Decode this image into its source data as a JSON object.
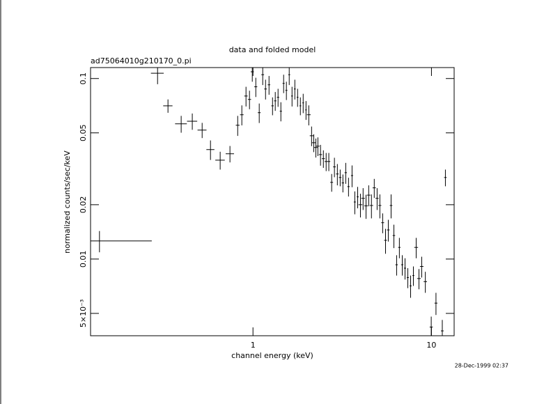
{
  "chart_data": {
    "type": "errorbar-scatter",
    "title": "data and folded model",
    "subtitle": "ad75064010g210170_0.pi",
    "x_label": "channel energy (keV)",
    "y_label": "normalized counts/sec/keV",
    "timestamp": "28-Dec-1999 02:37",
    "log_x": true,
    "log_y": true,
    "color": "#000000",
    "xlim": [
      0.123,
      13.4
    ],
    "ylim": [
      0.00376,
      0.115
    ],
    "xticks": [
      1,
      10
    ],
    "yticks": [
      {
        "value": 0.005,
        "label": "5×10⁻³"
      },
      0.01,
      0.02,
      0.05,
      0.1
    ],
    "x": [
      0.138,
      0.292,
      0.334,
      0.396,
      0.457,
      0.519,
      0.578,
      0.655,
      0.743,
      0.821,
      0.866,
      0.914,
      0.956,
      0.991,
      1.037,
      1.084,
      1.134,
      1.176,
      1.23,
      1.287,
      1.333,
      1.382,
      1.433,
      1.485,
      1.539,
      1.596,
      1.655,
      1.716,
      1.778,
      1.843,
      1.911,
      1.982,
      2.054,
      2.13,
      2.19,
      2.25,
      2.31,
      2.39,
      2.48,
      2.57,
      2.66,
      2.76,
      2.86,
      2.97,
      3.08,
      3.19,
      3.31,
      3.43,
      3.59,
      3.72,
      3.86,
      4.0,
      4.14,
      4.3,
      4.45,
      4.61,
      4.78,
      4.96,
      5.14,
      5.33,
      5.53,
      5.73,
      5.94,
      6.16,
      6.38,
      6.61,
      6.86,
      7.11,
      7.37,
      7.64,
      7.92,
      8.21,
      8.51,
      8.82,
      9.24,
      9.97,
      10.6,
      11.5,
      11.97
    ],
    "xerr": [
      0.133,
      0.024,
      0.02,
      0.03,
      0.03,
      0.03,
      0.03,
      0.04,
      0.04,
      0.02,
      0.02,
      0.02,
      0.02,
      0.02,
      0.02,
      0.02,
      0.02,
      0.02,
      0.02,
      0.02,
      0.02,
      0.02,
      0.02,
      0.02,
      0.02,
      0.02,
      0.02,
      0.02,
      0.02,
      0.02,
      0.02,
      0.02,
      0.05,
      0.05,
      0.05,
      0.05,
      0.05,
      0.05,
      0.05,
      0.05,
      0.05,
      0.05,
      0.05,
      0.05,
      0.05,
      0.05,
      0.05,
      0.05,
      0.05,
      0.05,
      0.05,
      0.1,
      0.1,
      0.1,
      0.1,
      0.1,
      0.1,
      0.1,
      0.1,
      0.1,
      0.1,
      0.1,
      0.1,
      0.1,
      0.1,
      0.1,
      0.1,
      0.1,
      0.1,
      0.1,
      0.1,
      0.2,
      0.2,
      0.2,
      0.2,
      0.2,
      0.2,
      0.2,
      0.2
    ],
    "values": [
      0.0126,
      0.107,
      0.0706,
      0.0561,
      0.058,
      0.0518,
      0.0404,
      0.0353,
      0.0383,
      0.0551,
      0.063,
      0.08,
      0.0766,
      0.109,
      0.09,
      0.0647,
      0.105,
      0.0875,
      0.0923,
      0.0706,
      0.0752,
      0.0787,
      0.0659,
      0.094,
      0.086,
      0.105,
      0.08,
      0.0875,
      0.0787,
      0.0706,
      0.0733,
      0.067,
      0.063,
      0.0482,
      0.0441,
      0.0415,
      0.0422,
      0.0379,
      0.036,
      0.0347,
      0.0347,
      0.0266,
      0.0324,
      0.0296,
      0.0283,
      0.0264,
      0.0301,
      0.0252,
      0.029,
      0.0207,
      0.0221,
      0.02,
      0.0217,
      0.0197,
      0.0226,
      0.0198,
      0.0248,
      0.0217,
      0.0198,
      0.0159,
      0.0127,
      0.0145,
      0.0198,
      0.0135,
      0.0093,
      0.0116,
      0.0093,
      0.0089,
      0.0079,
      0.0071,
      0.0081,
      0.0116,
      0.0078,
      0.0091,
      0.0075,
      0.0042,
      0.0057,
      0.004,
      0.0283
    ],
    "yerr": [
      0.0017,
      0.014,
      0.006,
      0.006,
      0.006,
      0.005,
      0.005,
      0.004,
      0.004,
      0.007,
      0.008,
      0.01,
      0.009,
      0.013,
      0.011,
      0.008,
      0.013,
      0.011,
      0.011,
      0.008,
      0.009,
      0.009,
      0.008,
      0.011,
      0.01,
      0.013,
      0.01,
      0.011,
      0.009,
      0.008,
      0.009,
      0.008,
      0.008,
      0.006,
      0.005,
      0.005,
      0.005,
      0.005,
      0.004,
      0.004,
      0.004,
      0.003,
      0.004,
      0.004,
      0.003,
      0.003,
      0.004,
      0.003,
      0.004,
      0.003,
      0.003,
      0.003,
      0.003,
      0.003,
      0.003,
      0.003,
      0.003,
      0.003,
      0.003,
      0.002,
      0.002,
      0.002,
      0.003,
      0.002,
      0.0012,
      0.0015,
      0.0012,
      0.0012,
      0.001,
      0.001,
      0.001,
      0.0015,
      0.001,
      0.0012,
      0.001,
      0.0006,
      0.0008,
      0.0006,
      0.003
    ]
  }
}
